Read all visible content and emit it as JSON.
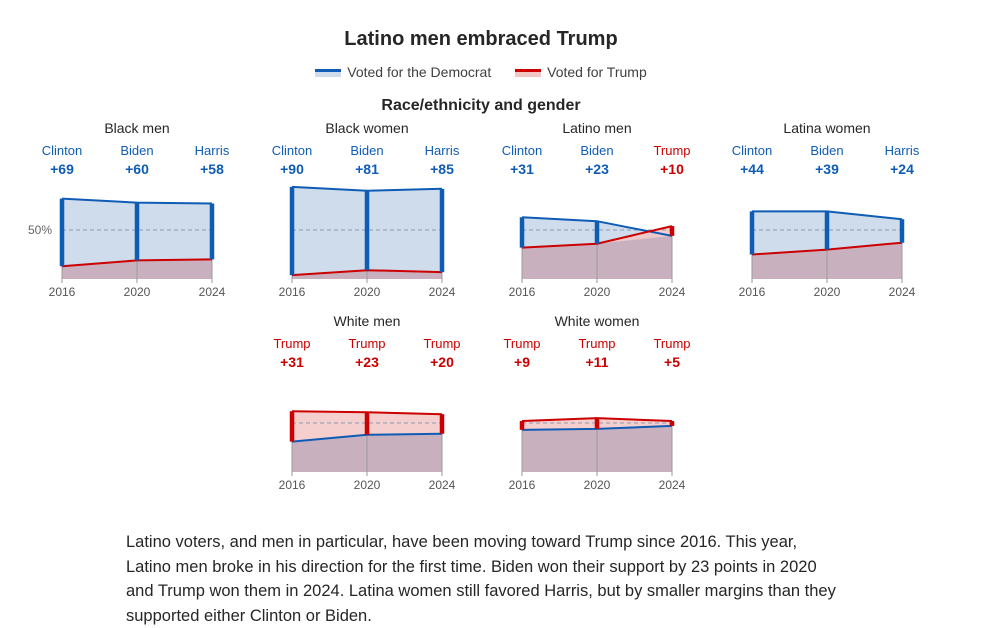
{
  "title": "Latino men embraced Trump",
  "legend": {
    "democrat": "Voted for the Democrat",
    "trump": "Voted for Trump"
  },
  "subtitle": "Race/ethnicity and gender",
  "colors": {
    "democrat_line": "#0f5cb5",
    "democrat_fill": "#cfdcec",
    "trump_line": "#cc0000",
    "trump_fill": "#f3c6c6",
    "overlap_fill": "#c9b0bf",
    "democrat_label": "#0f5cb5",
    "trump_label": "#cc0000"
  },
  "chart_data": {
    "type": "area",
    "x": [
      "2016",
      "2020",
      "2024"
    ],
    "reference_line": "50%",
    "panels": [
      {
        "title": "Black men",
        "labels": [
          {
            "winner": "Clinton",
            "margin": "+69",
            "party": "democrat"
          },
          {
            "winner": "Biden",
            "margin": "+60",
            "party": "democrat"
          },
          {
            "winner": "Harris",
            "margin": "+58",
            "party": "democrat"
          }
        ],
        "democrat": [
          82,
          78,
          77
        ],
        "trump": [
          13,
          19,
          20
        ]
      },
      {
        "title": "Black women",
        "labels": [
          {
            "winner": "Clinton",
            "margin": "+90",
            "party": "democrat"
          },
          {
            "winner": "Biden",
            "margin": "+81",
            "party": "democrat"
          },
          {
            "winner": "Harris",
            "margin": "+85",
            "party": "democrat"
          }
        ],
        "democrat": [
          94,
          90,
          92
        ],
        "trump": [
          4,
          9,
          7
        ]
      },
      {
        "title": "Latino men",
        "labels": [
          {
            "winner": "Clinton",
            "margin": "+31",
            "party": "democrat"
          },
          {
            "winner": "Biden",
            "margin": "+23",
            "party": "democrat"
          },
          {
            "winner": "Trump",
            "margin": "+10",
            "party": "trump"
          }
        ],
        "democrat": [
          63,
          59,
          44
        ],
        "trump": [
          32,
          36,
          54
        ]
      },
      {
        "title": "Latina women",
        "labels": [
          {
            "winner": "Clinton",
            "margin": "+44",
            "party": "democrat"
          },
          {
            "winner": "Biden",
            "margin": "+39",
            "party": "democrat"
          },
          {
            "winner": "Harris",
            "margin": "+24",
            "party": "democrat"
          }
        ],
        "democrat": [
          69,
          69,
          61
        ],
        "trump": [
          25,
          30,
          37
        ]
      },
      {
        "title": "White men",
        "labels": [
          {
            "winner": "Trump",
            "margin": "+31",
            "party": "trump"
          },
          {
            "winner": "Trump",
            "margin": "+23",
            "party": "trump"
          },
          {
            "winner": "Trump",
            "margin": "+20",
            "party": "trump"
          }
        ],
        "democrat": [
          31,
          38,
          39
        ],
        "trump": [
          62,
          61,
          59
        ]
      },
      {
        "title": "White women",
        "labels": [
          {
            "winner": "Trump",
            "margin": "+9",
            "party": "trump"
          },
          {
            "winner": "Trump",
            "margin": "+11",
            "party": "trump"
          },
          {
            "winner": "Trump",
            "margin": "+5",
            "party": "trump"
          }
        ],
        "democrat": [
          43,
          44,
          47
        ],
        "trump": [
          52,
          55,
          52
        ]
      }
    ],
    "ylim": [
      0,
      100
    ],
    "grid": false
  },
  "body_text": "Latino voters, and men in particular, have been moving toward Trump since 2016. This year, Latino men broke in his direction for the first time. Biden won their support by 23 points in 2020 and Trump won them in 2024. Latina women still favored Harris, but by smaller margins than they supported either Clinton or Biden."
}
